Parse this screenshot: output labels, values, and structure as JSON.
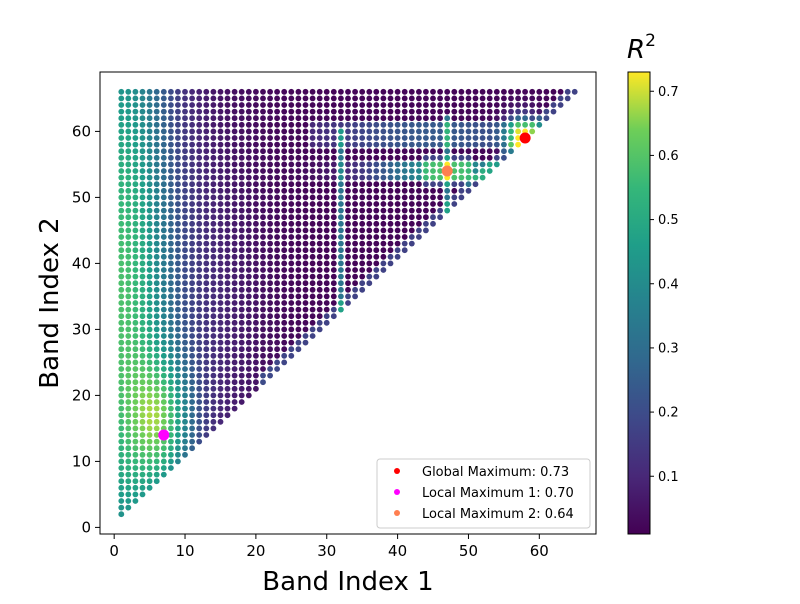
{
  "chart_data": {
    "type": "scatter",
    "description_of_grid": "All integer pairs (i, j) with 1 <= i <= 65 and i+1 <= j <= 66; each point colored by R^2",
    "x_range": [
      1,
      65
    ],
    "y_max": 66,
    "xlabel": "Band Index 1",
    "ylabel": "Band Index 2",
    "xlim": [
      -2,
      68
    ],
    "ylim": [
      -1,
      69
    ],
    "xticks": [
      0,
      10,
      20,
      30,
      40,
      50,
      60
    ],
    "yticks": [
      0,
      10,
      20,
      30,
      40,
      50,
      60
    ],
    "colorbar": {
      "label": "R^2",
      "label_base": "R",
      "label_exp": "2",
      "range": [
        0.01,
        0.73
      ],
      "ticks": [
        0.1,
        0.2,
        0.3,
        0.4,
        0.5,
        0.6,
        0.7
      ],
      "tick_labels": [
        "0.1",
        "0.2",
        "0.3",
        "0.4",
        "0.5",
        "0.6",
        "0.7"
      ],
      "colormap": "viridis"
    },
    "highlights": [
      {
        "name": "Global Maximum: 0.73",
        "x": 58,
        "y": 59,
        "value": 0.73,
        "color": "#ff0000"
      },
      {
        "name": "Local Maximum 1: 0.70",
        "x": 7,
        "y": 14,
        "value": 0.7,
        "color": "#ff00ff"
      },
      {
        "name": "Local Maximum 2: 0.64",
        "x": 47,
        "y": 54,
        "value": 0.64,
        "color": "#ff7f50"
      }
    ],
    "legend_placement": "lower-right",
    "grid": false
  }
}
